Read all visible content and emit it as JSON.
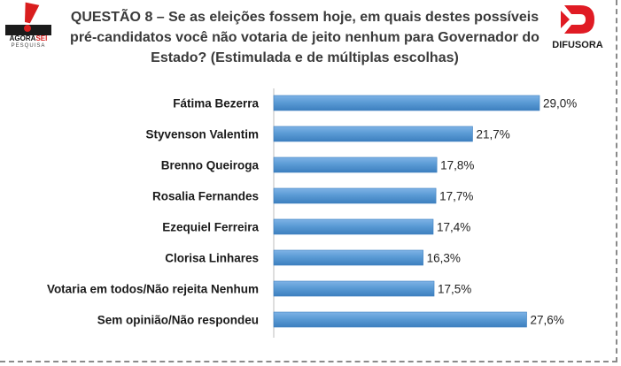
{
  "header": {
    "title": "QUESTÃO 8 – Se as eleições fossem hoje, em quais destes possíveis pré-candidatos você não votaria de jeito nenhum para Governador do Estado? (Estimulada e de múltiplas escolhas)",
    "left_logo": {
      "name_a": "AGORA",
      "name_b": "SEI",
      "sub": "PESQUISA"
    },
    "right_logo": {
      "name": "DIFUSORA"
    }
  },
  "colors": {
    "bar": "#5b9bd5",
    "bar_light": "#7fb3e6",
    "bar_dark": "#3d7fbf",
    "accent_red": "#d91e1e"
  },
  "chart_data": {
    "type": "bar",
    "orientation": "horizontal",
    "categories": [
      "Fátima Bezerra",
      "Styvenson Valentim",
      "Brenno Queiroga",
      "Rosalia Fernandes",
      "Ezequiel Ferreira",
      "Clorisa Linhares",
      "Votaria em todos/Não rejeita Nenhum",
      "Sem opinião/Não respondeu"
    ],
    "values": [
      29.0,
      21.7,
      17.8,
      17.7,
      17.4,
      16.3,
      17.5,
      27.6
    ],
    "value_labels": [
      "29,0%",
      "21,7%",
      "17,8%",
      "17,7%",
      "17,4%",
      "16,3%",
      "17,5%",
      "27,6%"
    ],
    "unit": "%",
    "title": "QUESTÃO 8 – Se as eleições fossem hoje, em quais destes possíveis pré-candidatos você não votaria de jeito nenhum para Governador do Estado? (Estimulada e de múltiplas escolhas)",
    "xlim": [
      0,
      29.0
    ],
    "grid": false
  }
}
